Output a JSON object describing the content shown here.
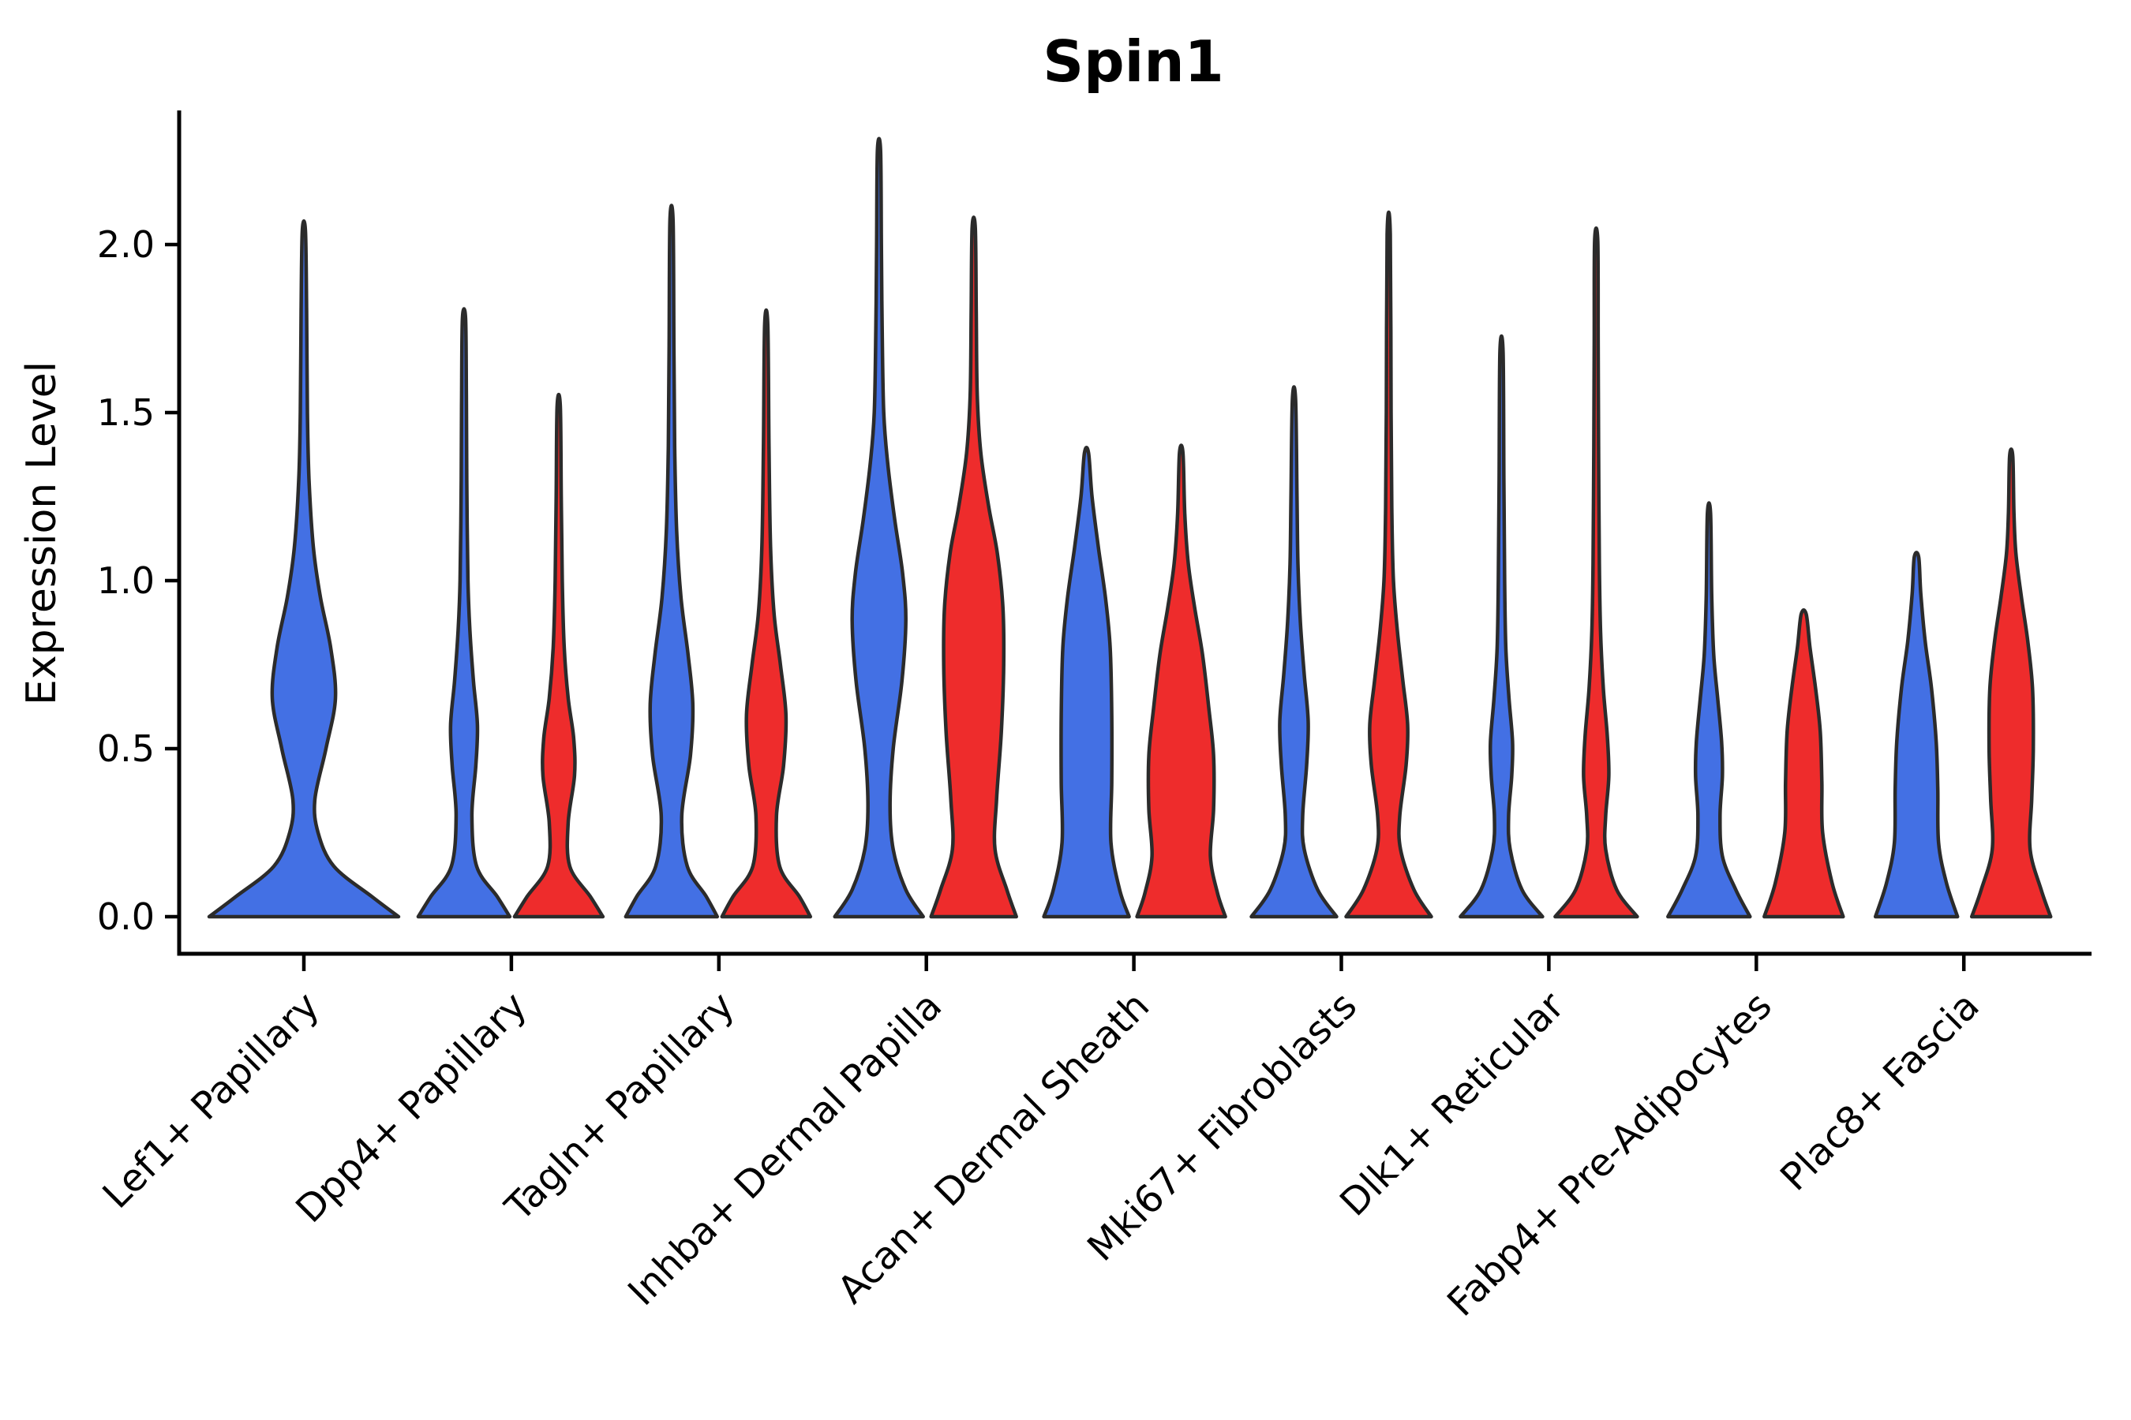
{
  "figure": {
    "background": "#ffffff"
  },
  "chart_data": {
    "type": "violin",
    "title": "Spin1",
    "y_label": "Expression Level",
    "y_ticks": [
      "0.0",
      "0.5",
      "1.0",
      "1.5",
      "2.0"
    ],
    "y_range": [
      0,
      2.4
    ],
    "x_tick_label_rotation_degrees": 45,
    "grid": "off",
    "legend": "none",
    "colors": {
      "blue": "#4370E4",
      "red": "#EE2C2C",
      "outline": "#2B2B2B",
      "axis": "#000000"
    },
    "categories": [
      {
        "label": "Lef1+ Papillary",
        "violins": [
          {
            "color": "blue",
            "max_expression": 2.04,
            "profile": [
              [
                0,
                120
              ],
              [
                0.06,
                86
              ],
              [
                0.15,
                38
              ],
              [
                0.25,
                18
              ],
              [
                0.35,
                14
              ],
              [
                0.5,
                28
              ],
              [
                0.65,
                40
              ],
              [
                0.8,
                34
              ],
              [
                0.95,
                21
              ],
              [
                1.1,
                12
              ],
              [
                1.3,
                6.5
              ],
              [
                1.5,
                4.5
              ],
              [
                1.8,
                3.5
              ],
              [
                2.04,
                2
              ]
            ]
          }
        ]
      },
      {
        "label": "Dpp4+ Papillary",
        "violins": [
          {
            "color": "blue",
            "max_expression": 1.78,
            "profile": [
              [
                0,
                58
              ],
              [
                0.06,
                42
              ],
              [
                0.15,
                16
              ],
              [
                0.3,
                10
              ],
              [
                0.45,
                15
              ],
              [
                0.57,
                17
              ],
              [
                0.7,
                12
              ],
              [
                0.85,
                7.5
              ],
              [
                1.0,
                5
              ],
              [
                1.3,
                3.5
              ],
              [
                1.55,
                3
              ],
              [
                1.78,
                2
              ]
            ]
          },
          {
            "color": "red",
            "max_expression": 1.52,
            "profile": [
              [
                0,
                56
              ],
              [
                0.06,
                40
              ],
              [
                0.15,
                14
              ],
              [
                0.28,
                12
              ],
              [
                0.42,
                20
              ],
              [
                0.53,
                19
              ],
              [
                0.65,
                12
              ],
              [
                0.8,
                7
              ],
              [
                1.0,
                4.5
              ],
              [
                1.25,
                3.2
              ],
              [
                1.52,
                2
              ]
            ]
          }
        ]
      },
      {
        "label": "Tagln+ Papillary",
        "violins": [
          {
            "color": "blue",
            "max_expression": 2.07,
            "profile": [
              [
                0,
                58
              ],
              [
                0.06,
                44
              ],
              [
                0.15,
                20
              ],
              [
                0.3,
                13
              ],
              [
                0.48,
                24
              ],
              [
                0.63,
                27
              ],
              [
                0.78,
                21
              ],
              [
                0.95,
                12
              ],
              [
                1.15,
                6.5
              ],
              [
                1.4,
                4
              ],
              [
                1.7,
                3
              ],
              [
                2.07,
                2
              ]
            ]
          },
          {
            "color": "red",
            "max_expression": 1.76,
            "profile": [
              [
                0,
                56
              ],
              [
                0.06,
                42
              ],
              [
                0.15,
                17
              ],
              [
                0.3,
                13
              ],
              [
                0.45,
                22
              ],
              [
                0.6,
                25
              ],
              [
                0.75,
                18
              ],
              [
                0.9,
                10
              ],
              [
                1.1,
                5.5
              ],
              [
                1.4,
                3.5
              ],
              [
                1.76,
                2
              ]
            ]
          }
        ]
      },
      {
        "label": "Inhba+ Dermal Papilla",
        "violins": [
          {
            "color": "blue",
            "max_expression": 2.28,
            "profile": [
              [
                0,
                56
              ],
              [
                0.08,
                34
              ],
              [
                0.2,
                18
              ],
              [
                0.33,
                14
              ],
              [
                0.5,
                18
              ],
              [
                0.7,
                29
              ],
              [
                0.88,
                34
              ],
              [
                1.02,
                30
              ],
              [
                1.18,
                20
              ],
              [
                1.35,
                11
              ],
              [
                1.5,
                6
              ],
              [
                1.75,
                4
              ],
              [
                2.0,
                3
              ],
              [
                2.28,
                2
              ]
            ]
          },
          {
            "color": "red",
            "max_expression": 2.05,
            "profile": [
              [
                0,
                54
              ],
              [
                0.08,
                42
              ],
              [
                0.2,
                27
              ],
              [
                0.35,
                29
              ],
              [
                0.55,
                35
              ],
              [
                0.75,
                38
              ],
              [
                0.92,
                37
              ],
              [
                1.08,
                30
              ],
              [
                1.22,
                19
              ],
              [
                1.38,
                9
              ],
              [
                1.55,
                4.5
              ],
              [
                1.8,
                3.2
              ],
              [
                2.05,
                2
              ]
            ]
          }
        ]
      },
      {
        "label": "Acan+ Dermal Sheath",
        "violins": [
          {
            "color": "blue",
            "max_expression": 1.38,
            "profile": [
              [
                0,
                54
              ],
              [
                0.08,
                42
              ],
              [
                0.22,
                31
              ],
              [
                0.4,
                32
              ],
              [
                0.6,
                32
              ],
              [
                0.8,
                30
              ],
              [
                0.95,
                24
              ],
              [
                1.1,
                15
              ],
              [
                1.25,
                7
              ],
              [
                1.38,
                2.6
              ]
            ]
          },
          {
            "color": "red",
            "max_expression": 1.38,
            "profile": [
              [
                0,
                56
              ],
              [
                0.07,
                46
              ],
              [
                0.18,
                37
              ],
              [
                0.32,
                41
              ],
              [
                0.48,
                41
              ],
              [
                0.62,
                35
              ],
              [
                0.78,
                27
              ],
              [
                0.92,
                17
              ],
              [
                1.05,
                9
              ],
              [
                1.2,
                4.5
              ],
              [
                1.38,
                2.2
              ]
            ]
          }
        ]
      },
      {
        "label": "Mki67+ Fibroblasts",
        "violins": [
          {
            "color": "blue",
            "max_expression": 1.54,
            "profile": [
              [
                0,
                54
              ],
              [
                0.08,
                30
              ],
              [
                0.2,
                13
              ],
              [
                0.3,
                11
              ],
              [
                0.45,
                16
              ],
              [
                0.58,
                18
              ],
              [
                0.72,
                13
              ],
              [
                0.88,
                8
              ],
              [
                1.05,
                5
              ],
              [
                1.25,
                3.8
              ],
              [
                1.54,
                2
              ]
            ]
          },
          {
            "color": "red",
            "max_expression": 2.03,
            "profile": [
              [
                0,
                54
              ],
              [
                0.08,
                32
              ],
              [
                0.2,
                15
              ],
              [
                0.3,
                14
              ],
              [
                0.45,
                22
              ],
              [
                0.57,
                24
              ],
              [
                0.7,
                18
              ],
              [
                0.85,
                11
              ],
              [
                1.0,
                6
              ],
              [
                1.2,
                4
              ],
              [
                1.5,
                3
              ],
              [
                2.03,
                2
              ]
            ]
          }
        ]
      },
      {
        "label": "Dlk1+ Reticular",
        "violins": [
          {
            "color": "blue",
            "max_expression": 1.68,
            "profile": [
              [
                0,
                52
              ],
              [
                0.08,
                26
              ],
              [
                0.2,
                11
              ],
              [
                0.3,
                9
              ],
              [
                0.42,
                13
              ],
              [
                0.52,
                14
              ],
              [
                0.65,
                9.5
              ],
              [
                0.8,
                5.5
              ],
              [
                1.0,
                4
              ],
              [
                1.3,
                3
              ],
              [
                1.68,
                2
              ]
            ]
          },
          {
            "color": "red",
            "max_expression": 2.01,
            "profile": [
              [
                0,
                52
              ],
              [
                0.08,
                26
              ],
              [
                0.2,
                12
              ],
              [
                0.3,
                12
              ],
              [
                0.42,
                16
              ],
              [
                0.54,
                14
              ],
              [
                0.68,
                9
              ],
              [
                0.85,
                5.5
              ],
              [
                1.05,
                4
              ],
              [
                1.4,
                3
              ],
              [
                1.7,
                2.5
              ],
              [
                2.01,
                2
              ]
            ]
          }
        ]
      },
      {
        "label": "Fabp4+ Pre-Adipocytes",
        "violins": [
          {
            "color": "blue",
            "max_expression": 1.2,
            "profile": [
              [
                0,
                52
              ],
              [
                0.08,
                34
              ],
              [
                0.18,
                17
              ],
              [
                0.3,
                14
              ],
              [
                0.42,
                17
              ],
              [
                0.52,
                16
              ],
              [
                0.65,
                11
              ],
              [
                0.78,
                6
              ],
              [
                0.95,
                3.5
              ],
              [
                1.2,
                2
              ]
            ]
          },
          {
            "color": "red",
            "max_expression": 0.9,
            "profile": [
              [
                0,
                50
              ],
              [
                0.1,
                36
              ],
              [
                0.25,
                24
              ],
              [
                0.4,
                23
              ],
              [
                0.55,
                21
              ],
              [
                0.68,
                15
              ],
              [
                0.8,
                8
              ],
              [
                0.9,
                3.2
              ]
            ]
          }
        ]
      },
      {
        "label": "Plac8+ Fascia",
        "violins": [
          {
            "color": "blue",
            "max_expression": 1.07,
            "profile": [
              [
                0,
                52
              ],
              [
                0.1,
                38
              ],
              [
                0.22,
                28
              ],
              [
                0.38,
                27
              ],
              [
                0.52,
                25
              ],
              [
                0.68,
                19
              ],
              [
                0.82,
                11
              ],
              [
                0.96,
                5.5
              ],
              [
                1.07,
                2.8
              ]
            ]
          },
          {
            "color": "red",
            "max_expression": 1.37,
            "profile": [
              [
                0,
                50
              ],
              [
                0.08,
                38
              ],
              [
                0.2,
                24
              ],
              [
                0.35,
                26
              ],
              [
                0.5,
                28
              ],
              [
                0.68,
                27
              ],
              [
                0.82,
                21
              ],
              [
                0.95,
                13
              ],
              [
                1.08,
                6
              ],
              [
                1.2,
                3.5
              ],
              [
                1.37,
                2
              ]
            ]
          }
        ]
      }
    ]
  }
}
